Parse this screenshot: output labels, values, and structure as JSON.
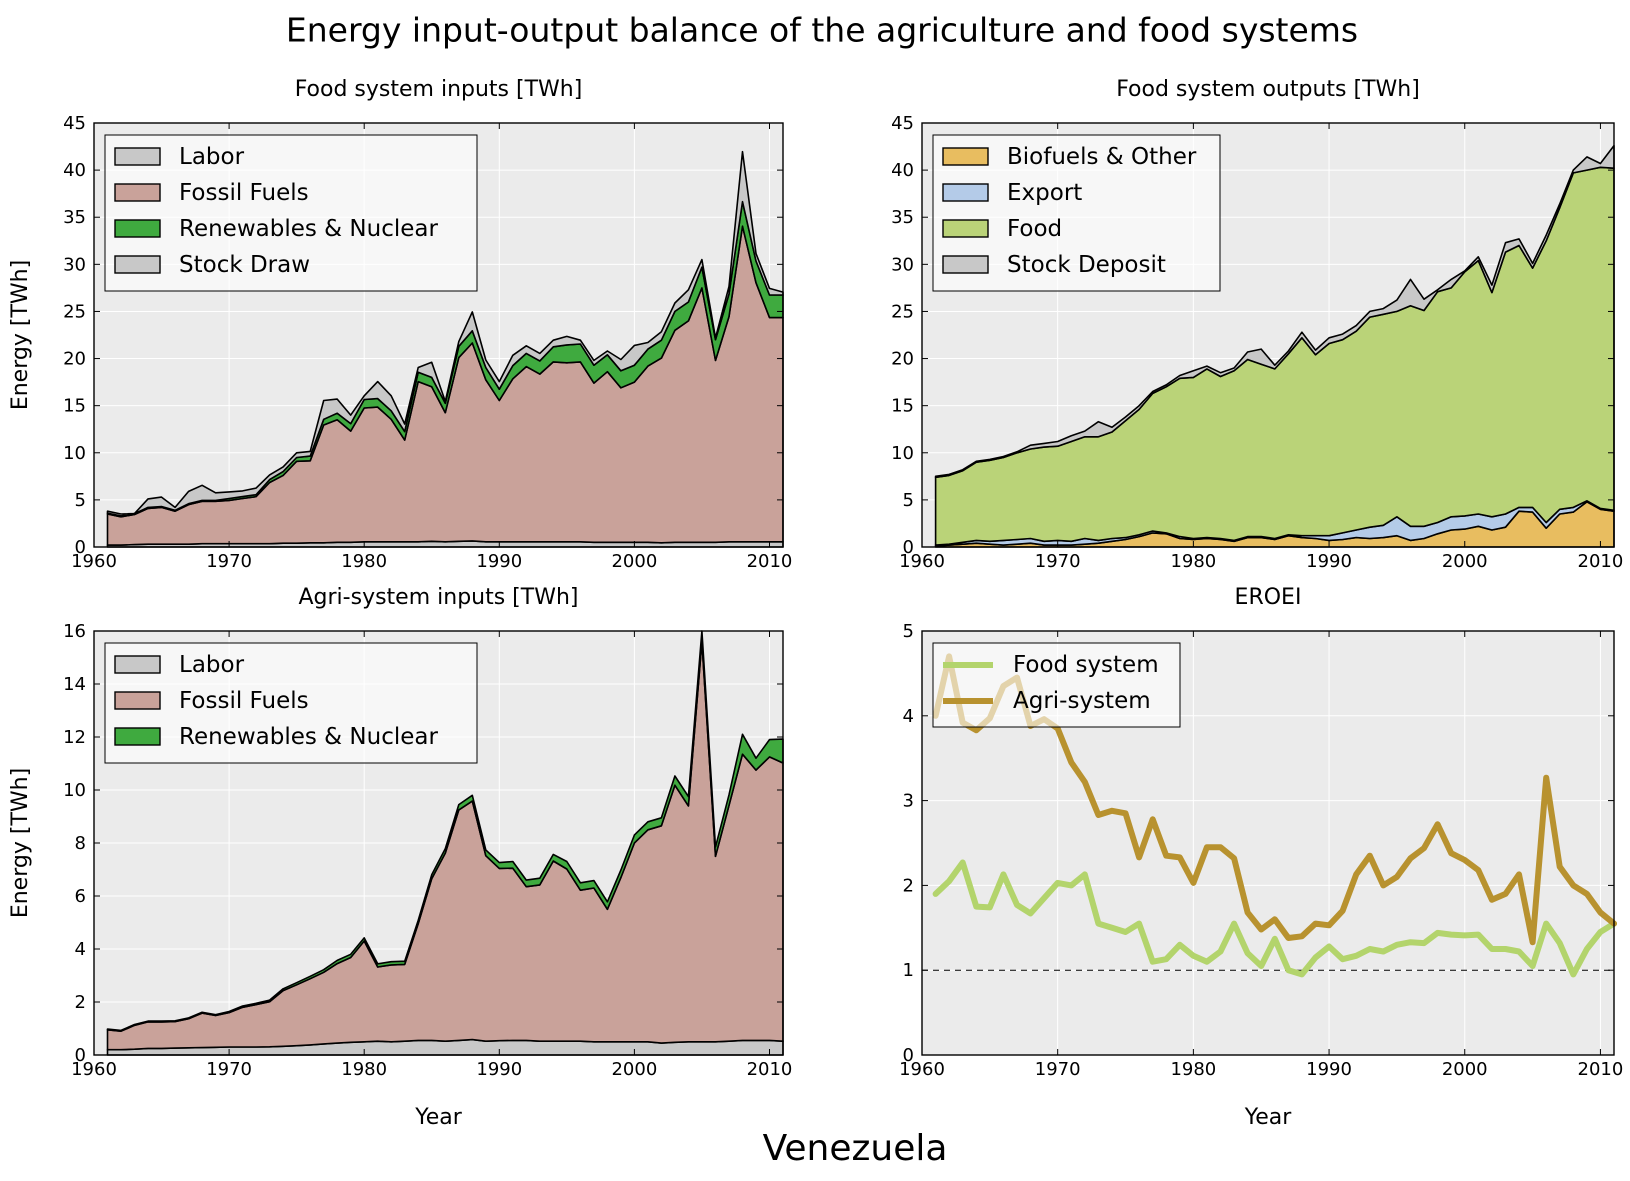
{
  "figure": {
    "suptitle": "Energy input-output balance of the agriculture and food systems",
    "country": "Venezuela"
  },
  "colors": {
    "labor": "#c8c8c8",
    "fossil": "#c9a29a",
    "renewables": "#3faa3f",
    "stock": "#c8c8c8",
    "biofuels": "#e8bd60",
    "export": "#b4cbe8",
    "food": "#bad378",
    "food_line": "#b3d46c",
    "agri_line": "#b8922f",
    "axes_bg": "#ebebeb"
  },
  "chart_data": [
    {
      "id": "food_inputs",
      "type": "area",
      "title": "Food system inputs [TWh]",
      "ylabel": "Energy [TWh]",
      "xlabel": "",
      "xlim": [
        1960,
        2011
      ],
      "ylim": [
        0,
        45
      ],
      "xticks": [
        1960,
        1970,
        1980,
        1990,
        2000,
        2010
      ],
      "yticks": [
        0,
        5,
        10,
        15,
        20,
        25,
        30,
        35,
        40,
        45
      ],
      "grid": true,
      "legend": "top-left",
      "x": [
        1961,
        1962,
        1963,
        1964,
        1965,
        1966,
        1967,
        1968,
        1969,
        1970,
        1971,
        1972,
        1973,
        1974,
        1975,
        1976,
        1977,
        1978,
        1979,
        1980,
        1981,
        1982,
        1983,
        1984,
        1985,
        1986,
        1987,
        1988,
        1989,
        1990,
        1991,
        1992,
        1993,
        1994,
        1995,
        1996,
        1997,
        1998,
        1999,
        2000,
        2001,
        2002,
        2003,
        2004,
        2005,
        2006,
        2007,
        2008,
        2009,
        2010,
        2011
      ],
      "series": [
        {
          "name": "Labor",
          "color_key": "labor",
          "values": [
            0.2,
            0.2,
            0.25,
            0.3,
            0.3,
            0.3,
            0.3,
            0.35,
            0.35,
            0.35,
            0.35,
            0.35,
            0.35,
            0.4,
            0.4,
            0.45,
            0.45,
            0.5,
            0.5,
            0.55,
            0.55,
            0.55,
            0.55,
            0.55,
            0.6,
            0.55,
            0.6,
            0.65,
            0.55,
            0.55,
            0.55,
            0.55,
            0.55,
            0.55,
            0.55,
            0.55,
            0.5,
            0.5,
            0.5,
            0.5,
            0.5,
            0.45,
            0.5,
            0.5,
            0.5,
            0.5,
            0.55,
            0.55,
            0.55,
            0.55,
            0.55
          ]
        },
        {
          "name": "Fossil Fuels",
          "color_key": "fossil",
          "values": [
            3.3,
            3.0,
            3.2,
            3.8,
            3.9,
            3.5,
            4.2,
            4.5,
            4.5,
            4.6,
            4.8,
            5.0,
            6.5,
            7.2,
            8.7,
            8.7,
            12.5,
            13.0,
            11.8,
            14.2,
            14.3,
            13.0,
            10.8,
            17.0,
            16.4,
            13.7,
            19.5,
            21.0,
            17.2,
            15.0,
            17.3,
            18.6,
            17.8,
            19.1,
            19.0,
            19.1,
            16.9,
            18.1,
            16.4,
            17.0,
            18.7,
            19.6,
            22.5,
            23.5,
            27.0,
            19.3,
            23.9,
            33.5,
            27.5,
            23.8,
            23.8
          ]
        },
        {
          "name": "Renewables & Nuclear",
          "color_key": "renewables",
          "values": [
            0.1,
            0.1,
            0.1,
            0.1,
            0.1,
            0.1,
            0.1,
            0.1,
            0.1,
            0.2,
            0.2,
            0.2,
            0.3,
            0.4,
            0.4,
            0.5,
            0.6,
            0.7,
            0.8,
            0.9,
            0.9,
            0.9,
            0.9,
            1.0,
            1.0,
            1.0,
            1.2,
            1.3,
            1.3,
            1.2,
            1.4,
            1.4,
            1.4,
            1.6,
            1.9,
            1.9,
            1.9,
            1.8,
            1.8,
            1.8,
            1.8,
            1.9,
            2.0,
            2.0,
            2.2,
            2.2,
            2.4,
            2.6,
            2.3,
            2.4,
            2.4
          ]
        },
        {
          "name": "Stock Draw",
          "color_key": "stock",
          "values": [
            0.2,
            0.2,
            0.0,
            0.9,
            1.0,
            0.3,
            1.3,
            1.6,
            0.8,
            0.7,
            0.6,
            0.7,
            0.5,
            0.5,
            0.5,
            0.5,
            2.0,
            1.5,
            0.9,
            0.4,
            1.8,
            1.6,
            0.8,
            0.5,
            1.6,
            0.2,
            0.5,
            2.0,
            0.8,
            0.8,
            1.1,
            0.8,
            0.8,
            0.7,
            0.9,
            0.4,
            0.5,
            0.4,
            1.2,
            2.1,
            0.7,
            0.9,
            0.9,
            1.3,
            0.8,
            0.2,
            0.8,
            5.3,
            0.8,
            0.7,
            0.3
          ]
        }
      ]
    },
    {
      "id": "food_outputs",
      "type": "area",
      "title": "Food system outputs [TWh]",
      "ylabel": "",
      "xlabel": "",
      "xlim": [
        1960,
        2011
      ],
      "ylim": [
        0,
        45
      ],
      "xticks": [
        1960,
        1970,
        1980,
        1990,
        2000,
        2010
      ],
      "yticks": [
        0,
        5,
        10,
        15,
        20,
        25,
        30,
        35,
        40,
        45
      ],
      "grid": true,
      "legend": "top-left",
      "x": [
        1961,
        1962,
        1963,
        1964,
        1965,
        1966,
        1967,
        1968,
        1969,
        1970,
        1971,
        1972,
        1973,
        1974,
        1975,
        1976,
        1977,
        1978,
        1979,
        1980,
        1981,
        1982,
        1983,
        1984,
        1985,
        1986,
        1987,
        1988,
        1989,
        1990,
        1991,
        1992,
        1993,
        1994,
        1995,
        1996,
        1997,
        1998,
        1999,
        2000,
        2001,
        2002,
        2003,
        2004,
        2005,
        2006,
        2007,
        2008,
        2009,
        2010,
        2011
      ],
      "series": [
        {
          "name": "Biofuels & Other",
          "color_key": "biofuels",
          "values": [
            0.1,
            0.2,
            0.3,
            0.4,
            0.3,
            0.2,
            0.3,
            0.4,
            0.2,
            0.2,
            0.2,
            0.3,
            0.4,
            0.6,
            0.8,
            1.1,
            1.5,
            1.4,
            0.9,
            0.8,
            0.9,
            0.8,
            0.6,
            1.0,
            1.0,
            0.8,
            1.2,
            1.0,
            0.9,
            0.7,
            0.8,
            1.0,
            0.9,
            1.0,
            1.2,
            0.7,
            0.9,
            1.4,
            1.8,
            1.9,
            2.2,
            1.8,
            2.1,
            3.8,
            3.7,
            2.0,
            3.5,
            3.7,
            4.8,
            4.0,
            3.8
          ]
        },
        {
          "name": "Export",
          "color_key": "export",
          "values": [
            0.1,
            0.1,
            0.2,
            0.3,
            0.3,
            0.5,
            0.5,
            0.5,
            0.4,
            0.5,
            0.4,
            0.6,
            0.3,
            0.3,
            0.2,
            0.2,
            0.2,
            0.1,
            0.2,
            0.1,
            0.1,
            0.1,
            0.1,
            0.1,
            0.1,
            0.1,
            0.1,
            0.2,
            0.3,
            0.5,
            0.7,
            0.8,
            1.2,
            1.3,
            2.0,
            1.5,
            1.3,
            1.2,
            1.4,
            1.4,
            1.3,
            1.4,
            1.4,
            0.4,
            0.5,
            0.6,
            0.5,
            0.5,
            0.1,
            0.1,
            0.1
          ]
        },
        {
          "name": "Food",
          "color_key": "food",
          "values": [
            7.2,
            7.3,
            7.6,
            8.3,
            8.6,
            8.8,
            9.2,
            9.5,
            10.0,
            10.0,
            10.6,
            10.8,
            11.0,
            11.3,
            12.4,
            13.3,
            14.6,
            15.5,
            16.8,
            17.1,
            17.9,
            17.2,
            18.0,
            18.8,
            18.3,
            18.0,
            19.2,
            21.0,
            19.2,
            20.4,
            20.5,
            21.1,
            22.3,
            22.4,
            21.8,
            23.4,
            22.9,
            24.5,
            24.3,
            25.9,
            26.9,
            23.8,
            27.8,
            27.8,
            25.4,
            29.9,
            32.0,
            35.5,
            35.1,
            36.2,
            36.3
          ]
        },
        {
          "name": "Stock Deposit",
          "color_key": "stock",
          "values": [
            0.1,
            0.1,
            0.1,
            0.1,
            0.1,
            0.1,
            0.1,
            0.4,
            0.4,
            0.5,
            0.6,
            0.6,
            1.6,
            0.5,
            0.4,
            0.4,
            0.2,
            0.2,
            0.3,
            0.7,
            0.3,
            0.4,
            0.3,
            0.8,
            1.6,
            0.4,
            0.3,
            0.6,
            0.5,
            0.6,
            0.6,
            0.6,
            0.6,
            0.6,
            1.2,
            2.8,
            1.2,
            0.2,
            0.9,
            0.1,
            0.4,
            0.8,
            1.0,
            0.7,
            0.5,
            0.6,
            0.4,
            0.3,
            1.4,
            0.4,
            2.4
          ]
        }
      ]
    },
    {
      "id": "agri_inputs",
      "type": "area",
      "title": "Agri-system inputs [TWh]",
      "ylabel": "Energy [TWh]",
      "xlabel": "Year",
      "xlim": [
        1960,
        2011
      ],
      "ylim": [
        0,
        16
      ],
      "xticks": [
        1960,
        1970,
        1980,
        1990,
        2000,
        2010
      ],
      "yticks": [
        0,
        2,
        4,
        6,
        8,
        10,
        12,
        14,
        16
      ],
      "grid": true,
      "legend": "top-left",
      "x": [
        1961,
        1962,
        1963,
        1964,
        1965,
        1966,
        1967,
        1968,
        1969,
        1970,
        1971,
        1972,
        1973,
        1974,
        1975,
        1976,
        1977,
        1978,
        1979,
        1980,
        1981,
        1982,
        1983,
        1984,
        1985,
        1986,
        1987,
        1988,
        1989,
        1990,
        1991,
        1992,
        1993,
        1994,
        1995,
        1996,
        1997,
        1998,
        1999,
        2000,
        2001,
        2002,
        2003,
        2004,
        2005,
        2006,
        2007,
        2008,
        2009,
        2010,
        2011
      ],
      "series": [
        {
          "name": "Labor",
          "color_key": "labor",
          "values": [
            0.2,
            0.2,
            0.22,
            0.25,
            0.25,
            0.26,
            0.27,
            0.28,
            0.29,
            0.3,
            0.3,
            0.3,
            0.31,
            0.33,
            0.35,
            0.38,
            0.42,
            0.45,
            0.48,
            0.5,
            0.52,
            0.5,
            0.52,
            0.55,
            0.55,
            0.52,
            0.55,
            0.58,
            0.52,
            0.54,
            0.55,
            0.55,
            0.52,
            0.52,
            0.52,
            0.52,
            0.5,
            0.5,
            0.5,
            0.5,
            0.5,
            0.45,
            0.48,
            0.5,
            0.5,
            0.5,
            0.52,
            0.55,
            0.55,
            0.55,
            0.52
          ]
        },
        {
          "name": "Fossil Fuels",
          "color_key": "fossil",
          "values": [
            0.75,
            0.7,
            0.9,
            1.0,
            1.0,
            1.0,
            1.1,
            1.3,
            1.2,
            1.3,
            1.5,
            1.6,
            1.7,
            2.1,
            2.3,
            2.5,
            2.7,
            3.0,
            3.2,
            3.8,
            2.8,
            2.9,
            2.9,
            4.4,
            6.1,
            7.1,
            8.7,
            9.0,
            7.0,
            6.5,
            6.5,
            5.8,
            5.9,
            6.8,
            6.5,
            5.7,
            5.8,
            5.0,
            6.2,
            7.5,
            8.0,
            8.2,
            9.7,
            8.9,
            15.1,
            7.0,
            8.9,
            10.8,
            10.2,
            10.7,
            10.5
          ]
        },
        {
          "name": "Renewables & Nuclear",
          "color_key": "renewables",
          "values": [
            0.03,
            0.03,
            0.03,
            0.03,
            0.03,
            0.03,
            0.03,
            0.03,
            0.03,
            0.04,
            0.05,
            0.05,
            0.06,
            0.07,
            0.08,
            0.09,
            0.1,
            0.12,
            0.12,
            0.12,
            0.12,
            0.12,
            0.12,
            0.13,
            0.15,
            0.17,
            0.2,
            0.22,
            0.22,
            0.22,
            0.25,
            0.25,
            0.25,
            0.25,
            0.28,
            0.28,
            0.28,
            0.28,
            0.28,
            0.3,
            0.3,
            0.3,
            0.35,
            0.35,
            0.4,
            0.35,
            0.4,
            0.75,
            0.45,
            0.65,
            0.9
          ]
        }
      ]
    },
    {
      "id": "eroei",
      "type": "line",
      "title": "EROEI",
      "ylabel": "",
      "xlabel": "Year",
      "xlim": [
        1960,
        2011
      ],
      "ylim": [
        0,
        5
      ],
      "xticks": [
        1960,
        1970,
        1980,
        1990,
        2000,
        2010
      ],
      "yticks": [
        0,
        1,
        2,
        3,
        4,
        5
      ],
      "grid": true,
      "legend": "top-left",
      "reference_line": 1,
      "x": [
        1961,
        1962,
        1963,
        1964,
        1965,
        1966,
        1967,
        1968,
        1969,
        1970,
        1971,
        1972,
        1973,
        1974,
        1975,
        1976,
        1977,
        1978,
        1979,
        1980,
        1981,
        1982,
        1983,
        1984,
        1985,
        1986,
        1987,
        1988,
        1989,
        1990,
        1991,
        1992,
        1993,
        1994,
        1995,
        1996,
        1997,
        1998,
        1999,
        2000,
        2001,
        2002,
        2003,
        2004,
        2005,
        2006,
        2007,
        2008,
        2009,
        2010,
        2011
      ],
      "series": [
        {
          "name": "Food system",
          "color_key": "food_line",
          "values": [
            1.9,
            2.05,
            2.27,
            1.75,
            1.74,
            2.13,
            1.77,
            1.67,
            1.85,
            2.03,
            2.0,
            2.13,
            1.55,
            1.5,
            1.45,
            1.55,
            1.1,
            1.13,
            1.3,
            1.17,
            1.1,
            1.22,
            1.55,
            1.2,
            1.05,
            1.37,
            1.0,
            0.95,
            1.15,
            1.28,
            1.13,
            1.17,
            1.25,
            1.22,
            1.3,
            1.33,
            1.32,
            1.44,
            1.42,
            1.41,
            1.42,
            1.25,
            1.25,
            1.22,
            1.05,
            1.55,
            1.32,
            0.95,
            1.25,
            1.45,
            1.55
          ]
        },
        {
          "name": "Agri-system",
          "color_key": "agri_line",
          "values": [
            4.0,
            4.7,
            3.92,
            3.83,
            3.97,
            4.35,
            4.45,
            3.88,
            3.96,
            3.85,
            3.45,
            3.22,
            2.83,
            2.88,
            2.85,
            2.33,
            2.78,
            2.35,
            2.33,
            2.03,
            2.45,
            2.45,
            2.32,
            1.68,
            1.48,
            1.6,
            1.38,
            1.4,
            1.55,
            1.53,
            1.7,
            2.13,
            2.35,
            2.0,
            2.1,
            2.32,
            2.44,
            2.72,
            2.38,
            2.3,
            2.18,
            1.83,
            1.9,
            2.13,
            1.33,
            3.27,
            2.22,
            2.0,
            1.9,
            1.68,
            1.55
          ]
        }
      ]
    }
  ]
}
